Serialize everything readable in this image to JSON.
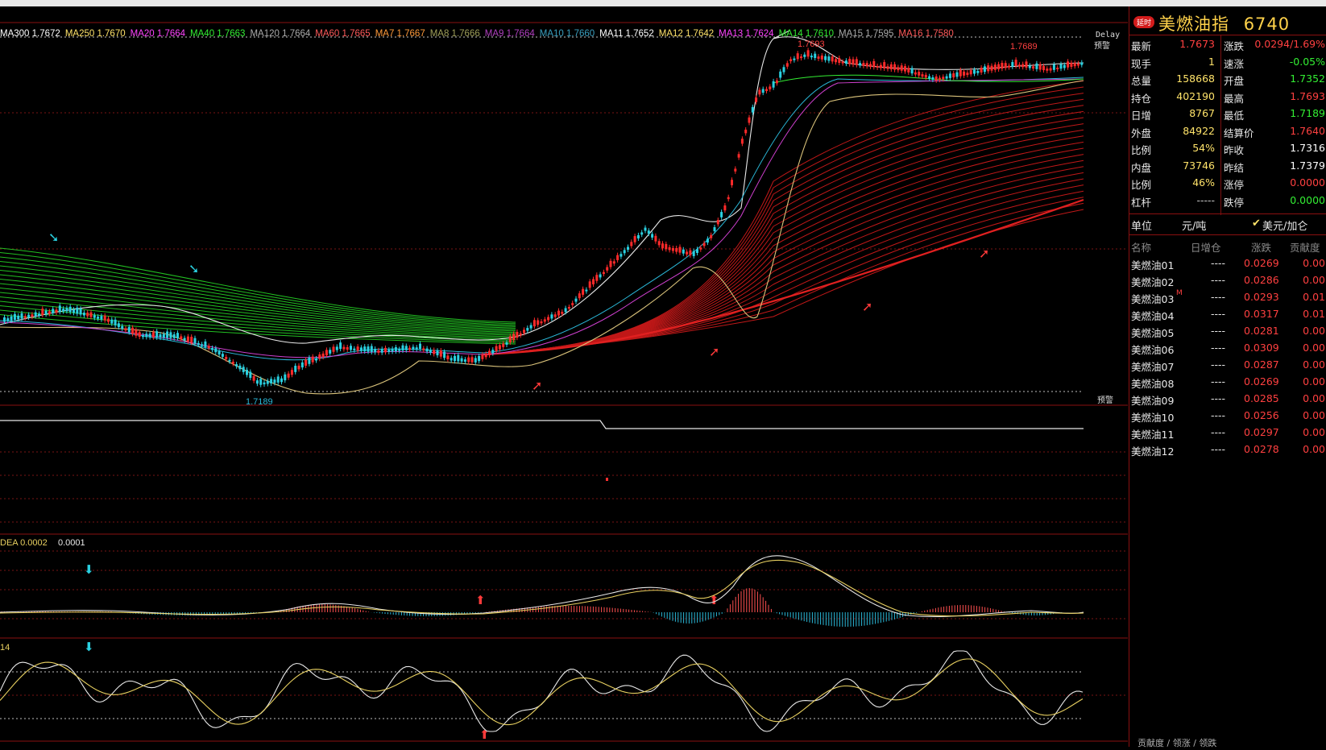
{
  "ma_legend": [
    {
      "label": "MA300 1.7672",
      "color": "#ffffff"
    },
    {
      "label": "MA250 1.7670",
      "color": "#ffe36a"
    },
    {
      "label": "MA20 1.7664",
      "color": "#ff44ff"
    },
    {
      "label": "MA40 1.7663",
      "color": "#33ee33"
    },
    {
      "label": "MA120 1.7664",
      "color": "#aaaaaa"
    },
    {
      "label": "MA60 1.7665",
      "color": "#ff5a5a"
    },
    {
      "label": "MA7 1.7667",
      "color": "#ff9a3a"
    },
    {
      "label": "MA8 1.7666",
      "color": "#a0a05a"
    },
    {
      "label": "MA9 1.7664",
      "color": "#b040c0"
    },
    {
      "label": "MA10 1.7660",
      "color": "#3aa0c0"
    },
    {
      "label": "MA11 1.7652",
      "color": "#ffffff"
    },
    {
      "label": "MA12 1.7642",
      "color": "#ffe36a"
    },
    {
      "label": "MA13 1.7624",
      "color": "#ff44ff"
    },
    {
      "label": "MA14 1.7610",
      "color": "#33ee33"
    },
    {
      "label": "MA15 1.7595",
      "color": "#aaaaaa"
    },
    {
      "label": "MA16 1.7580",
      "color": "#ff5a5a"
    }
  ],
  "delay_label": "Delay",
  "warn_top": "预警",
  "warn_bottom": "预警",
  "price_high_label": "1.7693",
  "price_high2_label": "1.7689",
  "price_low_label": "1.7189",
  "macd_label": "DEA 0.0002",
  "macd_value": "0.0001",
  "kdj_label": "14",
  "header": {
    "badge": "延时",
    "title": "美燃油指",
    "code": "6740"
  },
  "quote_left": [
    {
      "label": "最新",
      "value": "1.7673",
      "color": "#ff4040"
    },
    {
      "label": "现手",
      "value": "1",
      "color": "#ffe36a"
    },
    {
      "label": "总量",
      "value": "158668",
      "color": "#ffe36a"
    },
    {
      "label": "持仓",
      "value": "402190",
      "color": "#ffe36a"
    },
    {
      "label": "日增",
      "value": "8767",
      "color": "#ffe36a"
    },
    {
      "label": "外盘",
      "value": "84922",
      "color": "#ffe36a"
    },
    {
      "label": "比例",
      "value": "54%",
      "color": "#ffe36a"
    },
    {
      "label": "内盘",
      "value": "73746",
      "color": "#ffe36a"
    },
    {
      "label": "比例",
      "value": "46%",
      "color": "#ffe36a"
    },
    {
      "label": "杠杆",
      "value": "-----",
      "color": "#c8c8c8"
    }
  ],
  "quote_right": [
    {
      "label": "涨跌",
      "value": "0.0294/1.69%",
      "color": "#ff4040"
    },
    {
      "label": "速涨",
      "value": "-0.05%",
      "color": "#33ee33"
    },
    {
      "label": "开盘",
      "value": "1.7352",
      "color": "#33ee33"
    },
    {
      "label": "最高",
      "value": "1.7693",
      "color": "#ff4040"
    },
    {
      "label": "最低",
      "value": "1.7189",
      "color": "#33ee33"
    },
    {
      "label": "结算价",
      "value": "1.7640",
      "color": "#ff4040"
    },
    {
      "label": "昨收",
      "value": "1.7316",
      "color": "#ffffff"
    },
    {
      "label": "昨结",
      "value": "1.7379",
      "color": "#ffffff"
    },
    {
      "label": "涨停",
      "value": "0.0000",
      "color": "#ff4040"
    },
    {
      "label": "跌停",
      "value": "0.0000",
      "color": "#33ee33"
    }
  ],
  "unit": {
    "label": "单位",
    "value": "元/吨",
    "alt": "美元/加仑",
    "check": "✔"
  },
  "list_head": [
    "名称",
    "日增仓",
    "涨跌",
    "贡献度"
  ],
  "list": [
    {
      "name": "美燃油01",
      "inc": "----",
      "chg": "0.0269",
      "con": "0.00",
      "mark": ""
    },
    {
      "name": "美燃油02",
      "inc": "----",
      "chg": "0.0286",
      "con": "0.00",
      "mark": ""
    },
    {
      "name": "美燃油03",
      "inc": "----",
      "chg": "0.0293",
      "con": "0.01",
      "mark": "M"
    },
    {
      "name": "美燃油04",
      "inc": "----",
      "chg": "0.0317",
      "con": "0.01",
      "mark": ""
    },
    {
      "name": "美燃油05",
      "inc": "----",
      "chg": "0.0281",
      "con": "0.00",
      "mark": ""
    },
    {
      "name": "美燃油06",
      "inc": "----",
      "chg": "0.0309",
      "con": "0.00",
      "mark": ""
    },
    {
      "name": "美燃油07",
      "inc": "----",
      "chg": "0.0287",
      "con": "0.00",
      "mark": ""
    },
    {
      "name": "美燃油08",
      "inc": "----",
      "chg": "0.0269",
      "con": "0.00",
      "mark": ""
    },
    {
      "name": "美燃油09",
      "inc": "----",
      "chg": "0.0285",
      "con": "0.00",
      "mark": ""
    },
    {
      "name": "美燃油10",
      "inc": "----",
      "chg": "0.0256",
      "con": "0.00",
      "mark": ""
    },
    {
      "name": "美燃油11",
      "inc": "----",
      "chg": "0.0297",
      "con": "0.00",
      "mark": ""
    },
    {
      "name": "美燃油12",
      "inc": "----",
      "chg": "0.0278",
      "con": "0.00",
      "mark": ""
    }
  ],
  "bottom_tabs": "贡献度 / 领涨 / 领跌"
}
